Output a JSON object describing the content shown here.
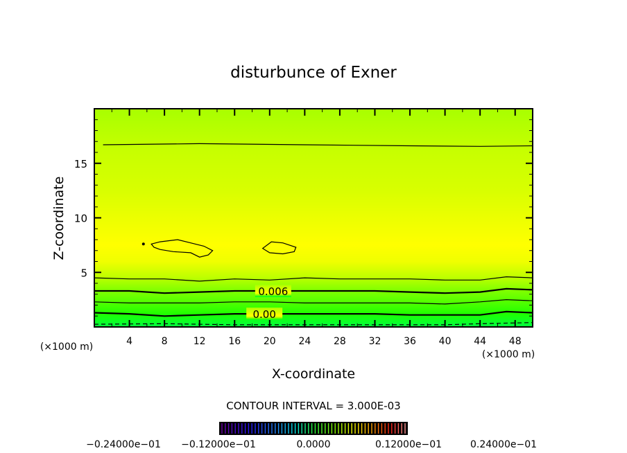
{
  "chart_data": {
    "type": "contour",
    "title": "disturbunce of Exner",
    "xlabel": "X-coordinate",
    "ylabel": "Z-coordinate",
    "x_unit_left": "(×1000 m)",
    "x_unit_right": "(×1000 m)",
    "xlim": [
      0,
      50
    ],
    "ylim": [
      0,
      20
    ],
    "xticks": [
      4,
      8,
      12,
      16,
      20,
      24,
      28,
      32,
      36,
      40,
      44,
      48
    ],
    "yticks": [
      5,
      10,
      15
    ],
    "contour_interval_text": "CONTOUR INTERVAL = 3.000E-03",
    "fill_colors": [
      {
        "z": 0,
        "color": "#00ff40"
      },
      {
        "z": 1.2,
        "color": "#20ff00"
      },
      {
        "z": 2.4,
        "color": "#58ff00"
      },
      {
        "z": 3.5,
        "color": "#88ff00"
      },
      {
        "z": 4.6,
        "color": "#c0ff00"
      },
      {
        "z": 6.0,
        "color": "#f0ff00"
      },
      {
        "z": 7.5,
        "color": "#ffff00"
      },
      {
        "z": 9.5,
        "color": "#f0ff00"
      },
      {
        "z": 12.5,
        "color": "#d8ff00"
      },
      {
        "z": 16.0,
        "color": "#c8ff00"
      },
      {
        "z": 20,
        "color": "#a8ff00"
      }
    ],
    "contours": [
      {
        "style": "thin",
        "points": [
          [
            1,
            16.7
          ],
          [
            12,
            16.8
          ],
          [
            24,
            16.7
          ],
          [
            36,
            16.6
          ],
          [
            44,
            16.55
          ],
          [
            50,
            16.6
          ]
        ]
      },
      {
        "style": "thin",
        "points": [
          [
            0,
            4.5
          ],
          [
            4,
            4.4
          ],
          [
            8,
            4.4
          ],
          [
            12,
            4.2
          ],
          [
            16,
            4.4
          ],
          [
            20,
            4.3
          ],
          [
            24,
            4.5
          ],
          [
            28,
            4.4
          ],
          [
            32,
            4.4
          ],
          [
            36,
            4.4
          ],
          [
            40,
            4.3
          ],
          [
            44,
            4.3
          ],
          [
            47,
            4.6
          ],
          [
            50,
            4.5
          ]
        ]
      },
      {
        "style": "thick",
        "label": "0.006",
        "label_x": 18.5,
        "points": [
          [
            0,
            3.3
          ],
          [
            4,
            3.3
          ],
          [
            8,
            3.1
          ],
          [
            12,
            3.2
          ],
          [
            16,
            3.3
          ],
          [
            20,
            3.3
          ],
          [
            24,
            3.3
          ],
          [
            28,
            3.3
          ],
          [
            32,
            3.3
          ],
          [
            36,
            3.2
          ],
          [
            40,
            3.1
          ],
          [
            44,
            3.2
          ],
          [
            47,
            3.5
          ],
          [
            50,
            3.4
          ]
        ]
      },
      {
        "style": "thin",
        "points": [
          [
            0,
            2.3
          ],
          [
            4,
            2.2
          ],
          [
            8,
            2.2
          ],
          [
            12,
            2.2
          ],
          [
            16,
            2.3
          ],
          [
            20,
            2.3
          ],
          [
            24,
            2.2
          ],
          [
            28,
            2.2
          ],
          [
            32,
            2.2
          ],
          [
            36,
            2.2
          ],
          [
            40,
            2.1
          ],
          [
            44,
            2.3
          ],
          [
            47,
            2.5
          ],
          [
            50,
            2.4
          ]
        ]
      },
      {
        "style": "thick",
        "label": "0.00",
        "label_x": 17.5,
        "points": [
          [
            0,
            1.3
          ],
          [
            4,
            1.2
          ],
          [
            8,
            1.0
          ],
          [
            12,
            1.1
          ],
          [
            16,
            1.2
          ],
          [
            20,
            1.2
          ],
          [
            24,
            1.2
          ],
          [
            28,
            1.2
          ],
          [
            32,
            1.2
          ],
          [
            36,
            1.1
          ],
          [
            40,
            1.1
          ],
          [
            44,
            1.1
          ],
          [
            47,
            1.4
          ],
          [
            50,
            1.3
          ]
        ]
      },
      {
        "style": "dashed",
        "points": [
          [
            0,
            0.25
          ],
          [
            8,
            0.3
          ],
          [
            16,
            0.2
          ],
          [
            24,
            0.2
          ],
          [
            32,
            0.2
          ],
          [
            40,
            0.2
          ],
          [
            44,
            0.3
          ],
          [
            50,
            0.4
          ]
        ]
      },
      {
        "style": "thin",
        "closed": true,
        "points": [
          [
            6.5,
            7.6
          ],
          [
            7.5,
            7.8
          ],
          [
            9.5,
            8.0
          ],
          [
            11,
            7.7
          ],
          [
            12.5,
            7.4
          ],
          [
            13.5,
            7.0
          ],
          [
            13,
            6.6
          ],
          [
            12,
            6.4
          ],
          [
            11,
            6.8
          ],
          [
            9,
            6.9
          ],
          [
            7.5,
            7.1
          ],
          [
            6.8,
            7.3
          ]
        ]
      },
      {
        "style": "thin",
        "closed": true,
        "points": [
          [
            19.2,
            7.2
          ],
          [
            20.2,
            7.8
          ],
          [
            21.5,
            7.7
          ],
          [
            23,
            7.3
          ],
          [
            22.8,
            6.9
          ],
          [
            21.5,
            6.7
          ],
          [
            20,
            6.8
          ]
        ]
      },
      {
        "style": "dot",
        "points": [
          [
            5.6,
            7.6
          ]
        ]
      }
    ],
    "colorbar": {
      "colors_from": "#4000a0",
      "labels": [
        "-0.24000e-01",
        "-0.12000e-01",
        "0.0000",
        "0.12000e-01",
        "0.24000e-01"
      ]
    }
  }
}
